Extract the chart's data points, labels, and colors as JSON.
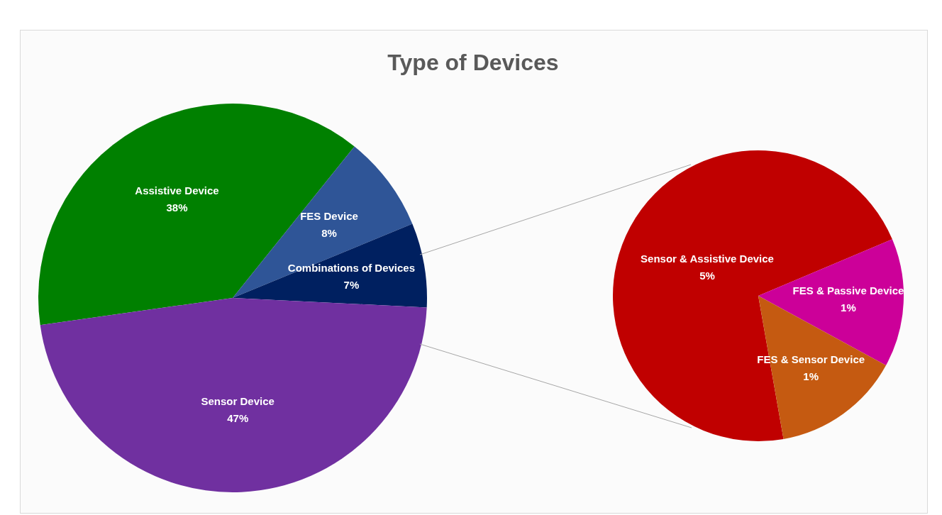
{
  "chart_data": [
    {
      "type": "pie",
      "title": "Type of Devices",
      "categories": [
        "Assistive Device",
        "FES Device",
        "Combinations of Devices",
        "Sensor Device"
      ],
      "values": [
        38,
        8,
        7,
        47
      ],
      "value_labels": [
        "38%",
        "8%",
        "7%",
        "47%"
      ],
      "colors": [
        "#008000",
        "#2f5597",
        "#002060",
        "#7030a0"
      ],
      "legend": false
    },
    {
      "type": "pie",
      "categories": [
        "Sensor & Assistive Device",
        "FES & Passive Device",
        "FES & Sensor Device"
      ],
      "values": [
        5,
        1,
        1
      ],
      "value_labels": [
        "5%",
        "1%",
        "1%"
      ],
      "colors": [
        "#c00000",
        "#cc0099",
        "#c55a11"
      ],
      "legend": false
    }
  ]
}
